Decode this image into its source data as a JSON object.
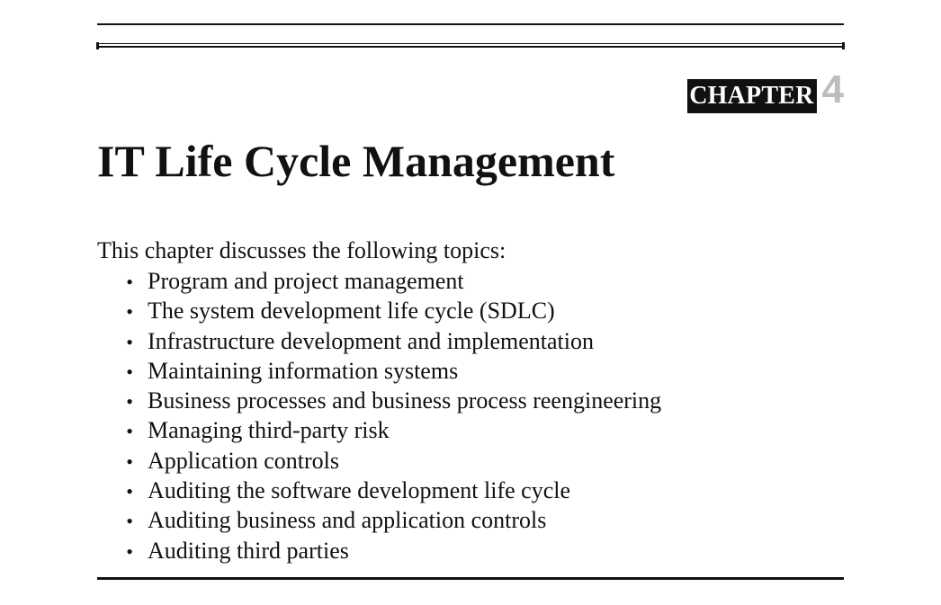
{
  "chapter": {
    "label": "CHAPTER",
    "number": "4"
  },
  "title": "IT Life Cycle Management",
  "intro": "This chapter discusses the following topics:",
  "topics": [
    "Program and project management",
    "The system development life cycle (SDLC)",
    "Infrastructure development and implementation",
    "Maintaining information systems",
    "Business processes and business process reengineering",
    "Managing third-party risk",
    "Application controls",
    "Auditing the software development life cycle",
    "Auditing business and application controls",
    "Auditing third parties"
  ],
  "bullet_glyph": "•",
  "colors": {
    "text": "#111111",
    "chapter_label_bg": "#111111",
    "chapter_label_text": "#ffffff",
    "chapter_number": "#bdbdbd"
  }
}
